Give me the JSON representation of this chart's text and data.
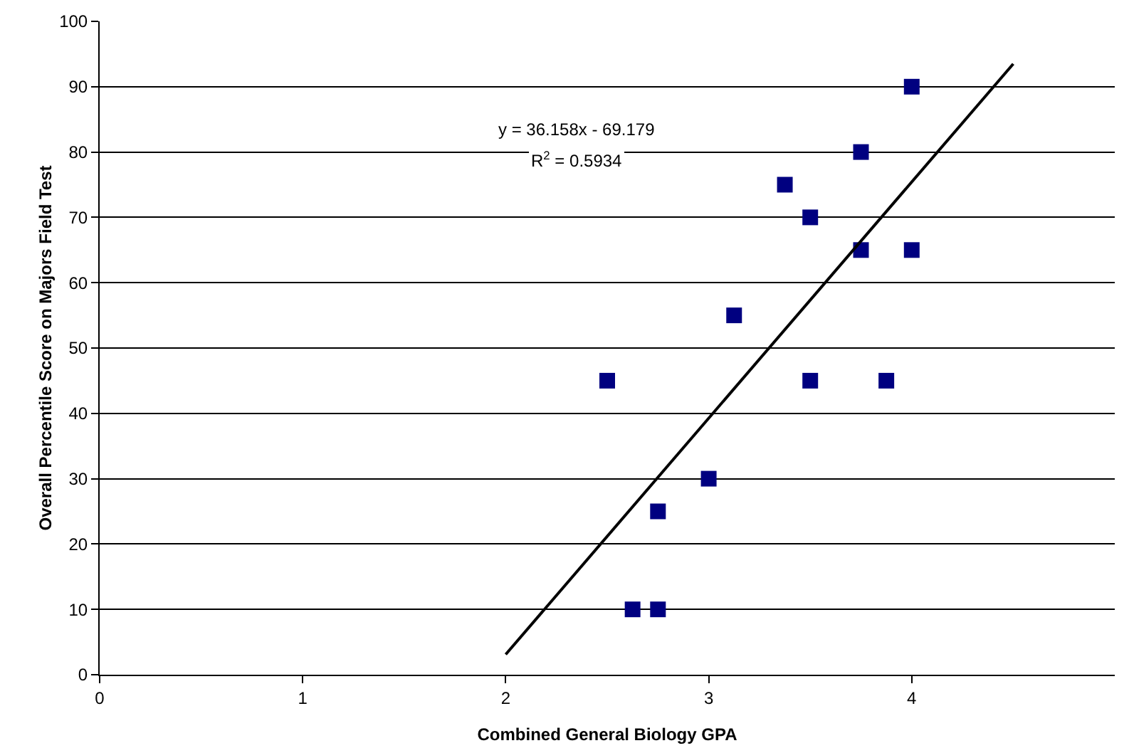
{
  "chart_data": {
    "type": "scatter",
    "xlabel": "Combined General Biology GPA",
    "ylabel": "Overall Percentile Score on Majors Field Test",
    "xlim": [
      0,
      5
    ],
    "xticks": [
      0,
      1,
      2,
      3,
      4
    ],
    "ylim": [
      0,
      100
    ],
    "yticks": [
      0,
      10,
      20,
      30,
      40,
      50,
      60,
      70,
      80,
      90,
      100
    ],
    "grid": "y",
    "annotations": [
      "y = 36.158x - 69.179",
      "R$^{2}$ = 0.5934"
    ],
    "series": [
      {
        "marker": "square",
        "color": "#000080",
        "x": [
          2.5,
          2.625,
          2.75,
          2.75,
          3.0,
          3.125,
          3.375,
          3.5,
          3.5,
          3.75,
          3.75,
          3.875,
          4.0,
          4.0
        ],
        "values": [
          45,
          10,
          10,
          25,
          30,
          55,
          75,
          70,
          45,
          80,
          65,
          45,
          90,
          65
        ]
      },
      {
        "type": "line",
        "marker": "none",
        "color": "#000000",
        "x": [
          2,
          4.5
        ],
        "values": [
          3.1,
          93.5
        ]
      }
    ]
  }
}
